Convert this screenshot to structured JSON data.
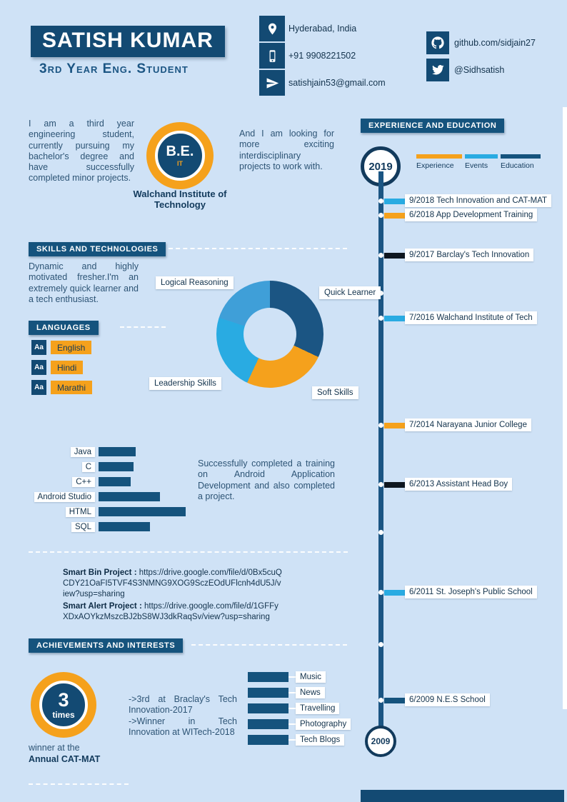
{
  "colors": {
    "background": "#cfe2f6",
    "navy": "#134a73",
    "banner_blue": "#15537d",
    "orange": "#f5a11c",
    "light_blue": "#29abe2",
    "dark_marker": "#0f1720",
    "body_text": "#2d5475",
    "label_text": "#13334d"
  },
  "header": {
    "name": "SATISH KUMAR",
    "subtitle": "3rd Year Eng. Student",
    "contacts": [
      {
        "icon": "location-pin-icon",
        "value": "Hyderabad, India"
      },
      {
        "icon": "mobile-phone-icon",
        "value": "+91 9908221502"
      },
      {
        "icon": "paper-plane-icon",
        "value": "satishjain53@gmail.com"
      }
    ],
    "socials": [
      {
        "icon": "github-icon",
        "value": "github.com/sidjain27"
      },
      {
        "icon": "twitter-icon",
        "value": "@Sidhsatish"
      }
    ]
  },
  "about": {
    "intro": "I am a third year engineering student, currently pursuing my bachelor's degree and have successfully completed minor projects.",
    "degree": "B.E.",
    "branch": "IT",
    "institute": "Walchand Institute of Technology",
    "looking": "And I am looking for more exciting interdisciplinary projects to work with."
  },
  "experience": {
    "title": "EXPERIENCE AND EDUCATION",
    "start_year": "2019",
    "end_year": "2009",
    "legend": [
      {
        "label": "Experience",
        "color": "#f5a11c"
      },
      {
        "label": "Events",
        "color": "#29abe2"
      },
      {
        "label": "Education",
        "color": "#15537d"
      }
    ],
    "items": [
      {
        "date": "9/2018",
        "title": "Tech Innovation and CAT-MAT",
        "category": "Events",
        "color": "#29abe2"
      },
      {
        "date": "6/2018",
        "title": "App Development Training",
        "category": "Experience",
        "color": "#f5a11c"
      },
      {
        "date": "9/2017",
        "title": "Barclay's Tech Innovation",
        "category": "Education",
        "color": "#0f1720"
      },
      {
        "date": "7/2016",
        "title": "Walchand Institute of Tech",
        "category": "Events",
        "color": "#29abe2"
      },
      {
        "date": "7/2014",
        "title": "Narayana Junior College",
        "category": "Experience",
        "color": "#f5a11c"
      },
      {
        "date": "6/2013",
        "title": "Assistant Head Boy",
        "category": "Education",
        "color": "#0f1720"
      },
      {
        "date": "6/2011",
        "title": "St. Joseph's Public School",
        "category": "Events",
        "color": "#29abe2"
      },
      {
        "date": "6/2009",
        "title": "N.E.S School",
        "category": "Education",
        "color": "#15537d"
      }
    ]
  },
  "skills": {
    "title": "SKILLS AND TECHNOLOGIES",
    "text": "Dynamic and highly motivated fresher.I'm an extremely quick learner and a tech enthusiast."
  },
  "languages": {
    "title": "LANGUAGES",
    "items": [
      {
        "label": "English"
      },
      {
        "label": "Hindi"
      },
      {
        "label": "Marathi"
      }
    ]
  },
  "programming": {
    "note": "Successfully completed a training on Android Application Development and also completed a project."
  },
  "projects": [
    {
      "name": "Smart Bin Project :",
      "url": "https://drive.google.com/file/d/0Bx5cuQCDY21OaFI5TVF4S3NMNG9XOG9SczEOdUFlcnh4dU5J/view?usp=sharing"
    },
    {
      "name": "Smart Alert Project :",
      "url": "https://drive.google.com/file/d/1GFFyXDxAOYkzMszcBJ2bS8WJ3dkRaqSv/view?usp=sharing"
    }
  ],
  "achievements": {
    "title": "ACHIEVEMENTS AND INTERESTS",
    "badge_number": "3",
    "badge_word": "times",
    "caption_line1": "winner at the",
    "caption_line2": "Annual CAT-MAT",
    "bullets": [
      "->3rd at Braclay's Tech Innovation-2017",
      "->Winner in Tech Innovation at WITech-2018"
    ],
    "interests": [
      "Music",
      "News",
      "Travelling",
      "Photography",
      "Tech Blogs"
    ]
  },
  "chart_data": [
    {
      "type": "pie",
      "variant": "donut",
      "title": "Soft skills donut",
      "segments": [
        {
          "label": "Quick Learner",
          "value": 32,
          "color": "#1b5583"
        },
        {
          "label": "Soft Skills",
          "value": 25,
          "color": "#f5a11c"
        },
        {
          "label": "Leadership Skills",
          "value": 23,
          "color": "#29abe2"
        },
        {
          "label": "Logical Reasoning",
          "value": 20,
          "color": "#3f9fd8"
        }
      ]
    },
    {
      "type": "bar",
      "title": "Programming / technology proficiency",
      "orientation": "horizontal",
      "categories": [
        "Java",
        "C",
        "C++",
        "Android Studio",
        "HTML",
        "SQL"
      ],
      "values": [
        52,
        49,
        45,
        86,
        122,
        72
      ],
      "unit": "relative-bar-length-px",
      "bar_color": "#15537d"
    }
  ]
}
